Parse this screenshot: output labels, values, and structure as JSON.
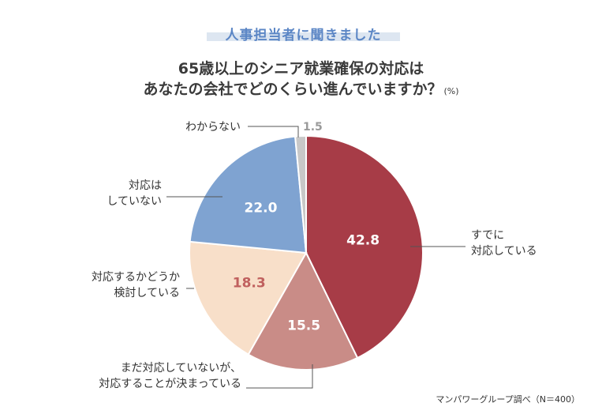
{
  "banner": "人事担当者に聞きました",
  "question": {
    "line1": "65歳以上のシニア就業確保の対応は",
    "line2": "あなたの会社でどのくらい進んでいますか？",
    "unit": "(%)"
  },
  "source_note": "マンパワーグループ調べ（N＝400）",
  "chart_data": {
    "type": "pie",
    "title": "65歳以上のシニア就業確保の対応はあなたの会社でどのくらい進んでいますか？",
    "unit": "(%)",
    "slices": [
      {
        "label_lines": [
          "すでに",
          "対応している"
        ],
        "value": 42.8,
        "display": "42.8",
        "color": "#a73c47",
        "value_color": "#ffffff"
      },
      {
        "label_lines": [
          "まだ対応していないが、",
          "対応することが決まっている"
        ],
        "value": 15.5,
        "display": "15.5",
        "color": "#c98c87",
        "value_color": "#ffffff"
      },
      {
        "label_lines": [
          "対応するかどうか",
          "検討している"
        ],
        "value": 18.3,
        "display": "18.3",
        "color": "#f8dfc9",
        "value_color": "#c0605e"
      },
      {
        "label_lines": [
          "対応は",
          "していない"
        ],
        "value": 22.0,
        "display": "22.0",
        "color": "#7fa3d1",
        "value_color": "#ffffff"
      },
      {
        "label_lines": [
          "わからない"
        ],
        "value": 1.5,
        "display": "1.5",
        "color": "#c8c8c8",
        "value_color": "#9a9a9a"
      }
    ]
  }
}
